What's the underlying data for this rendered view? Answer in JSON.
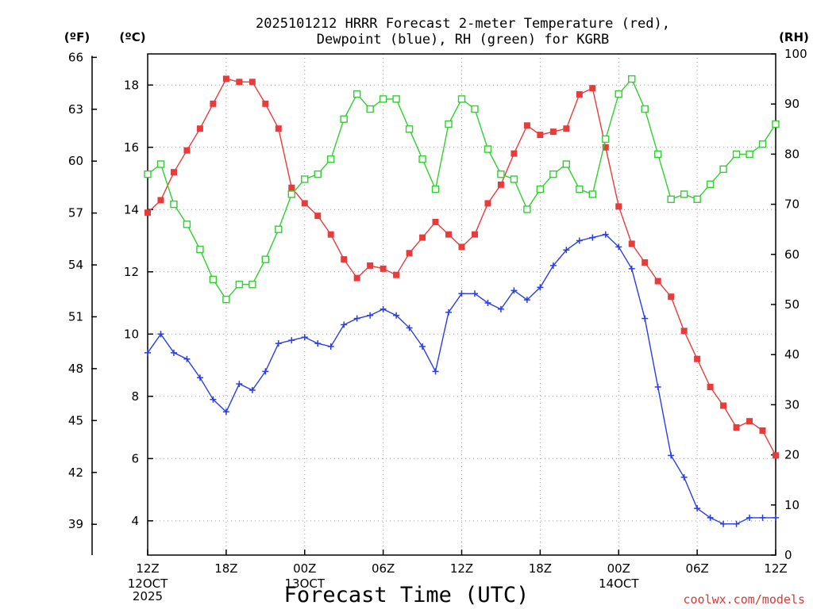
{
  "chart_data": {
    "type": "line",
    "title_lines": [
      "2025101212 HRRR Forecast 2-meter Temperature (red),",
      "Dewpoint (blue), RH (green) for KGRB"
    ],
    "xlabel": "Forecast Time (UTC)",
    "credit": "coolwx.com/models",
    "unit_labels": {
      "fahrenheit": "(ºF)",
      "celsius": "(ºC)",
      "rh": "(RH)"
    },
    "x_hours": [
      0,
      1,
      2,
      3,
      4,
      5,
      6,
      7,
      8,
      9,
      10,
      11,
      12,
      13,
      14,
      15,
      16,
      17,
      18,
      19,
      20,
      21,
      22,
      23,
      24,
      25,
      26,
      27,
      28,
      29,
      30,
      31,
      32,
      33,
      34,
      35,
      36,
      37,
      38,
      39,
      40,
      41,
      42,
      43,
      44,
      45,
      46,
      47,
      48
    ],
    "xlim": [
      0,
      48
    ],
    "x_ticks": [
      {
        "hour": 0,
        "label": "12Z",
        "sub": [
          "12OCT",
          "2025"
        ]
      },
      {
        "hour": 6,
        "label": "18Z",
        "sub": []
      },
      {
        "hour": 12,
        "label": "00Z",
        "sub": [
          "13OCT"
        ]
      },
      {
        "hour": 18,
        "label": "06Z",
        "sub": []
      },
      {
        "hour": 24,
        "label": "12Z",
        "sub": []
      },
      {
        "hour": 30,
        "label": "18Z",
        "sub": []
      },
      {
        "hour": 36,
        "label": "00Z",
        "sub": [
          "14OCT"
        ]
      },
      {
        "hour": 42,
        "label": "06Z",
        "sub": []
      },
      {
        "hour": 48,
        "label": "12Z",
        "sub": []
      }
    ],
    "celsius_axis": {
      "ylim": [
        2.9,
        19.0
      ],
      "ticks": [
        4,
        6,
        8,
        10,
        12,
        14,
        16,
        18
      ]
    },
    "fahrenheit_ticks": [
      39,
      42,
      45,
      48,
      51,
      54,
      57,
      60,
      63,
      66
    ],
    "rh_axis": {
      "ylim": [
        0,
        100
      ],
      "ticks": [
        0,
        10,
        20,
        30,
        40,
        50,
        60,
        70,
        80,
        90,
        100
      ]
    },
    "grid": true,
    "series": [
      {
        "name": "Temperature",
        "axis": "celsius",
        "color": "#e83c3c",
        "marker": "filled-square",
        "values": [
          13.9,
          14.3,
          15.2,
          15.9,
          16.6,
          17.4,
          18.2,
          18.1,
          18.1,
          17.4,
          16.6,
          14.7,
          14.2,
          13.8,
          13.2,
          12.4,
          11.8,
          12.2,
          12.1,
          11.9,
          12.6,
          13.1,
          13.6,
          13.2,
          12.8,
          13.2,
          14.2,
          14.8,
          15.8,
          16.7,
          16.4,
          16.5,
          16.6,
          17.7,
          17.9,
          16.0,
          14.1,
          12.9,
          12.3,
          11.7,
          11.2,
          10.1,
          9.2,
          8.3,
          7.7,
          7.0,
          7.2,
          6.9,
          6.1
        ]
      },
      {
        "name": "Dewpoint",
        "axis": "celsius",
        "color": "#2a3de6",
        "marker": "plus",
        "values": [
          9.4,
          10.0,
          9.4,
          9.2,
          8.6,
          7.9,
          7.5,
          8.4,
          8.2,
          8.8,
          9.7,
          9.8,
          9.9,
          9.7,
          9.6,
          10.3,
          10.5,
          10.6,
          10.8,
          10.6,
          10.2,
          9.6,
          8.8,
          10.7,
          11.3,
          11.3,
          11.0,
          10.8,
          11.4,
          11.1,
          11.5,
          12.2,
          12.7,
          13.0,
          13.1,
          13.2,
          12.8,
          12.1,
          10.5,
          8.3,
          6.1,
          5.4,
          4.4,
          4.1,
          3.9,
          3.9,
          4.1,
          4.1,
          4.1
        ]
      },
      {
        "name": "RH",
        "axis": "rh",
        "color": "#2ed12e",
        "marker": "open-square",
        "values": [
          76,
          78,
          70,
          66,
          61,
          55,
          51,
          54,
          54,
          59,
          65,
          72,
          75,
          76,
          79,
          87,
          92,
          89,
          91,
          91,
          85,
          79,
          73,
          86,
          91,
          89,
          81,
          76,
          75,
          69,
          73,
          76,
          78,
          73,
          72,
          83,
          92,
          95,
          89,
          80,
          71,
          72,
          71,
          74,
          77,
          80,
          80,
          82,
          86
        ]
      }
    ]
  }
}
